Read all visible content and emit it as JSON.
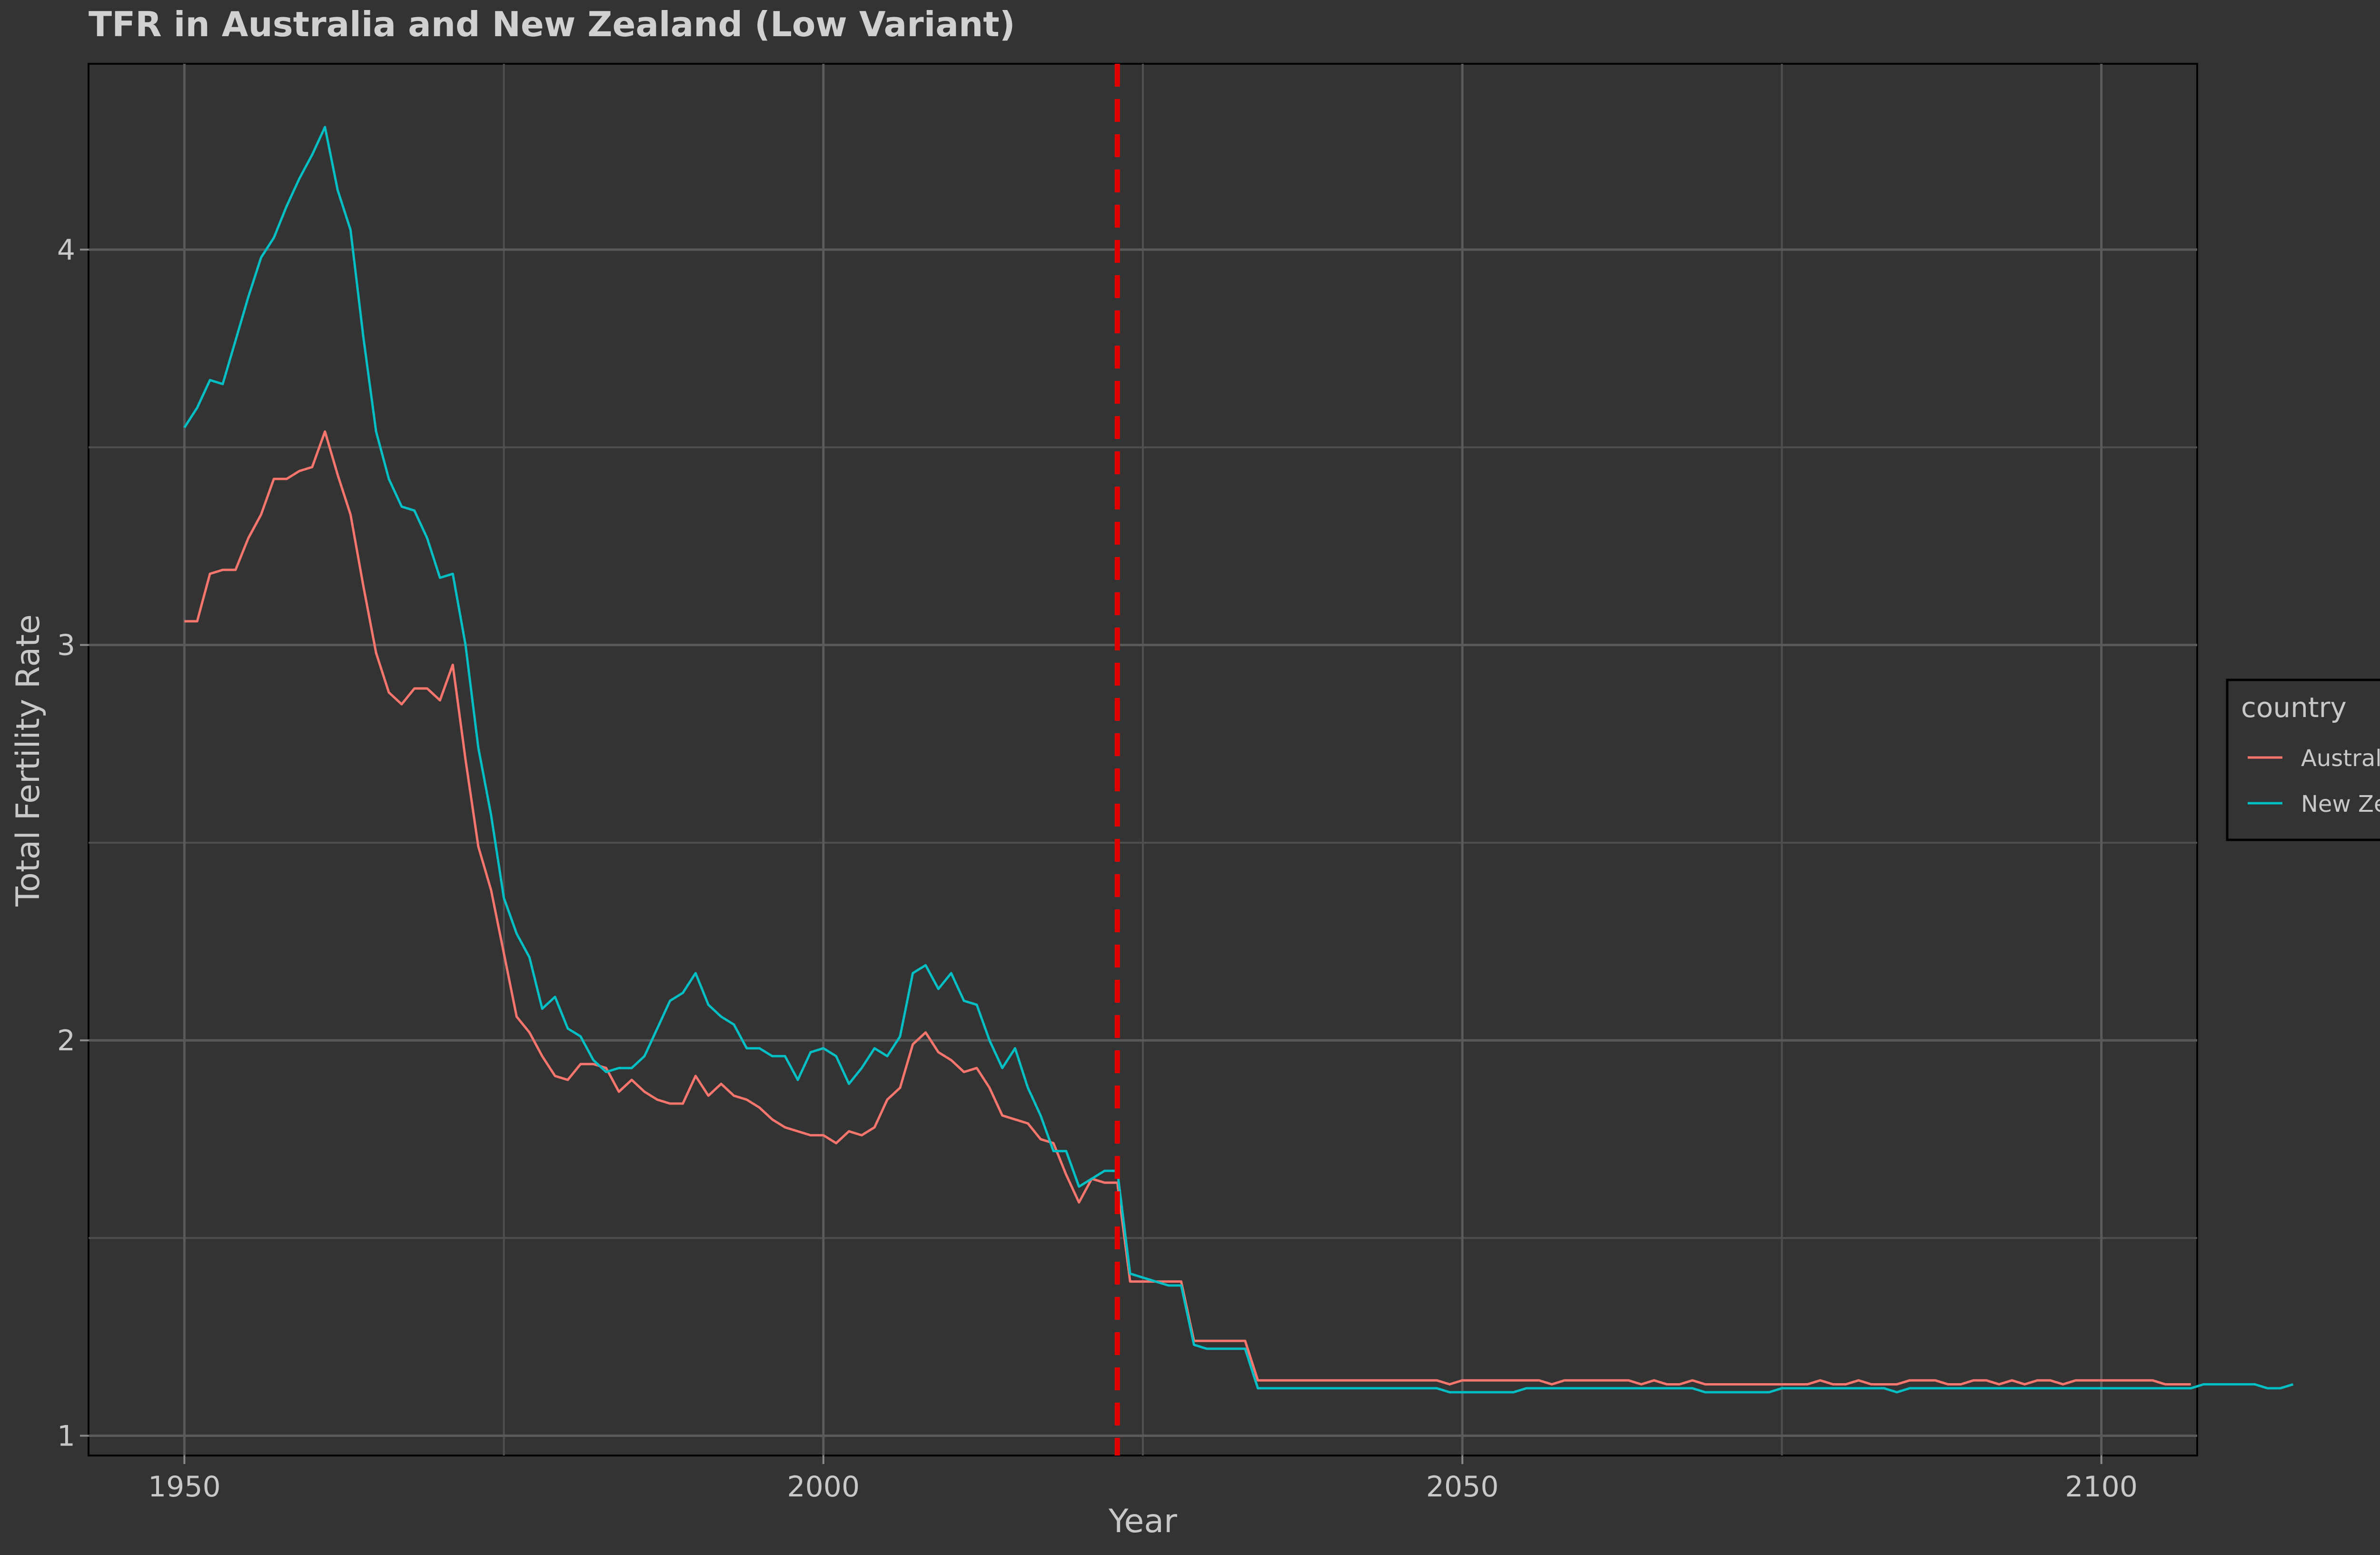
{
  "chart_data": {
    "type": "line",
    "title": "TFR in Australia and New Zealand (Low Variant)",
    "xlabel": "Year",
    "ylabel": "Total Fertility Rate",
    "xlim": [
      1942.5,
      2107.5
    ],
    "ylim": [
      0.95,
      4.47
    ],
    "x_ticks": [
      1950,
      2000,
      2050,
      2100
    ],
    "y_ticks": [
      1,
      2,
      3,
      4
    ],
    "x_tick_labels": [
      "1950",
      "2000",
      "2050",
      "2100"
    ],
    "y_tick_labels": [
      "1",
      "2",
      "3",
      "4"
    ],
    "x_minor_ticks": [
      1975,
      2025,
      2075
    ],
    "y_minor_ticks": [
      1.5,
      2.5,
      3.5
    ],
    "grid": true,
    "reference_line": {
      "x": 2023,
      "color": "#e00000",
      "style": "dashed"
    },
    "legend": {
      "title": "country",
      "position": "right",
      "entries": [
        "Australia",
        "New Zealand"
      ]
    },
    "x_start": 1950,
    "x_step": 1,
    "series": [
      {
        "name": "Australia",
        "color": "#f8766d",
        "values": [
          3.06,
          3.06,
          3.18,
          3.19,
          3.19,
          3.27,
          3.33,
          3.42,
          3.42,
          3.44,
          3.45,
          3.54,
          3.43,
          3.33,
          3.15,
          2.98,
          2.88,
          2.85,
          2.89,
          2.89,
          2.86,
          2.95,
          2.71,
          2.49,
          2.38,
          2.22,
          2.06,
          2.02,
          1.96,
          1.91,
          1.9,
          1.94,
          1.94,
          1.93,
          1.87,
          1.9,
          1.87,
          1.85,
          1.84,
          1.84,
          1.91,
          1.86,
          1.89,
          1.86,
          1.85,
          1.83,
          1.8,
          1.78,
          1.77,
          1.76,
          1.76,
          1.74,
          1.77,
          1.76,
          1.78,
          1.85,
          1.88,
          1.99,
          2.02,
          1.97,
          1.95,
          1.92,
          1.93,
          1.88,
          1.81,
          1.8,
          1.79,
          1.75,
          1.74,
          1.66,
          1.59,
          1.65,
          1.64,
          1.64,
          1.39,
          1.39,
          1.39,
          1.39,
          1.39,
          1.24,
          1.24,
          1.24,
          1.24,
          1.24,
          1.14,
          1.14,
          1.14,
          1.14,
          1.14,
          1.14,
          1.14,
          1.14,
          1.14,
          1.14,
          1.14,
          1.14,
          1.14,
          1.14,
          1.14,
          1.13,
          1.14,
          1.14,
          1.14,
          1.14,
          1.14,
          1.14,
          1.14,
          1.13,
          1.14,
          1.14,
          1.14,
          1.14,
          1.14,
          1.14,
          1.13,
          1.14,
          1.13,
          1.13,
          1.14,
          1.13,
          1.13,
          1.13,
          1.13,
          1.13,
          1.13,
          1.13,
          1.13,
          1.13,
          1.14,
          1.13,
          1.13,
          1.14,
          1.13,
          1.13,
          1.13,
          1.14,
          1.14,
          1.14,
          1.13,
          1.13,
          1.14,
          1.14,
          1.13,
          1.14,
          1.13,
          1.14,
          1.14,
          1.13,
          1.14,
          1.14,
          1.14,
          1.14,
          1.14,
          1.14,
          1.14,
          1.13,
          1.13,
          1.13
        ]
      },
      {
        "name": "New Zealand",
        "color": "#00bfc4",
        "values": [
          3.55,
          3.6,
          3.67,
          3.66,
          3.77,
          3.88,
          3.98,
          4.03,
          4.11,
          4.18,
          4.24,
          4.31,
          4.15,
          4.05,
          3.78,
          3.54,
          3.42,
          3.35,
          3.34,
          3.27,
          3.17,
          3.18,
          3.0,
          2.74,
          2.57,
          2.36,
          2.27,
          2.21,
          2.08,
          2.11,
          2.03,
          2.01,
          1.95,
          1.92,
          1.93,
          1.93,
          1.96,
          2.03,
          2.1,
          2.12,
          2.17,
          2.09,
          2.06,
          2.04,
          1.98,
          1.98,
          1.96,
          1.96,
          1.9,
          1.97,
          1.98,
          1.96,
          1.89,
          1.93,
          1.98,
          1.96,
          2.01,
          2.17,
          2.19,
          2.13,
          2.17,
          2.1,
          2.09,
          2.0,
          1.93,
          1.98,
          1.88,
          1.81,
          1.72,
          1.72,
          1.63,
          1.65,
          1.67,
          1.67,
          1.41,
          1.4,
          1.39,
          1.38,
          1.38,
          1.23,
          1.22,
          1.22,
          1.22,
          1.22,
          1.12,
          1.12,
          1.12,
          1.12,
          1.12,
          1.12,
          1.12,
          1.12,
          1.12,
          1.12,
          1.12,
          1.12,
          1.12,
          1.12,
          1.12,
          1.11,
          1.11,
          1.11,
          1.11,
          1.11,
          1.11,
          1.12,
          1.12,
          1.12,
          1.12,
          1.12,
          1.12,
          1.12,
          1.12,
          1.12,
          1.12,
          1.12,
          1.12,
          1.12,
          1.12,
          1.11,
          1.11,
          1.11,
          1.11,
          1.11,
          1.11,
          1.12,
          1.12,
          1.12,
          1.12,
          1.12,
          1.12,
          1.12,
          1.12,
          1.12,
          1.11,
          1.12,
          1.12,
          1.12,
          1.12,
          1.12,
          1.12,
          1.12,
          1.12,
          1.12,
          1.12,
          1.12,
          1.12,
          1.12,
          1.12,
          1.12,
          1.12,
          1.12,
          1.12,
          1.12,
          1.12,
          1.12,
          1.12,
          1.12,
          1.13,
          1.13,
          1.13,
          1.13,
          1.13,
          1.12,
          1.12,
          1.13
        ]
      }
    ]
  }
}
